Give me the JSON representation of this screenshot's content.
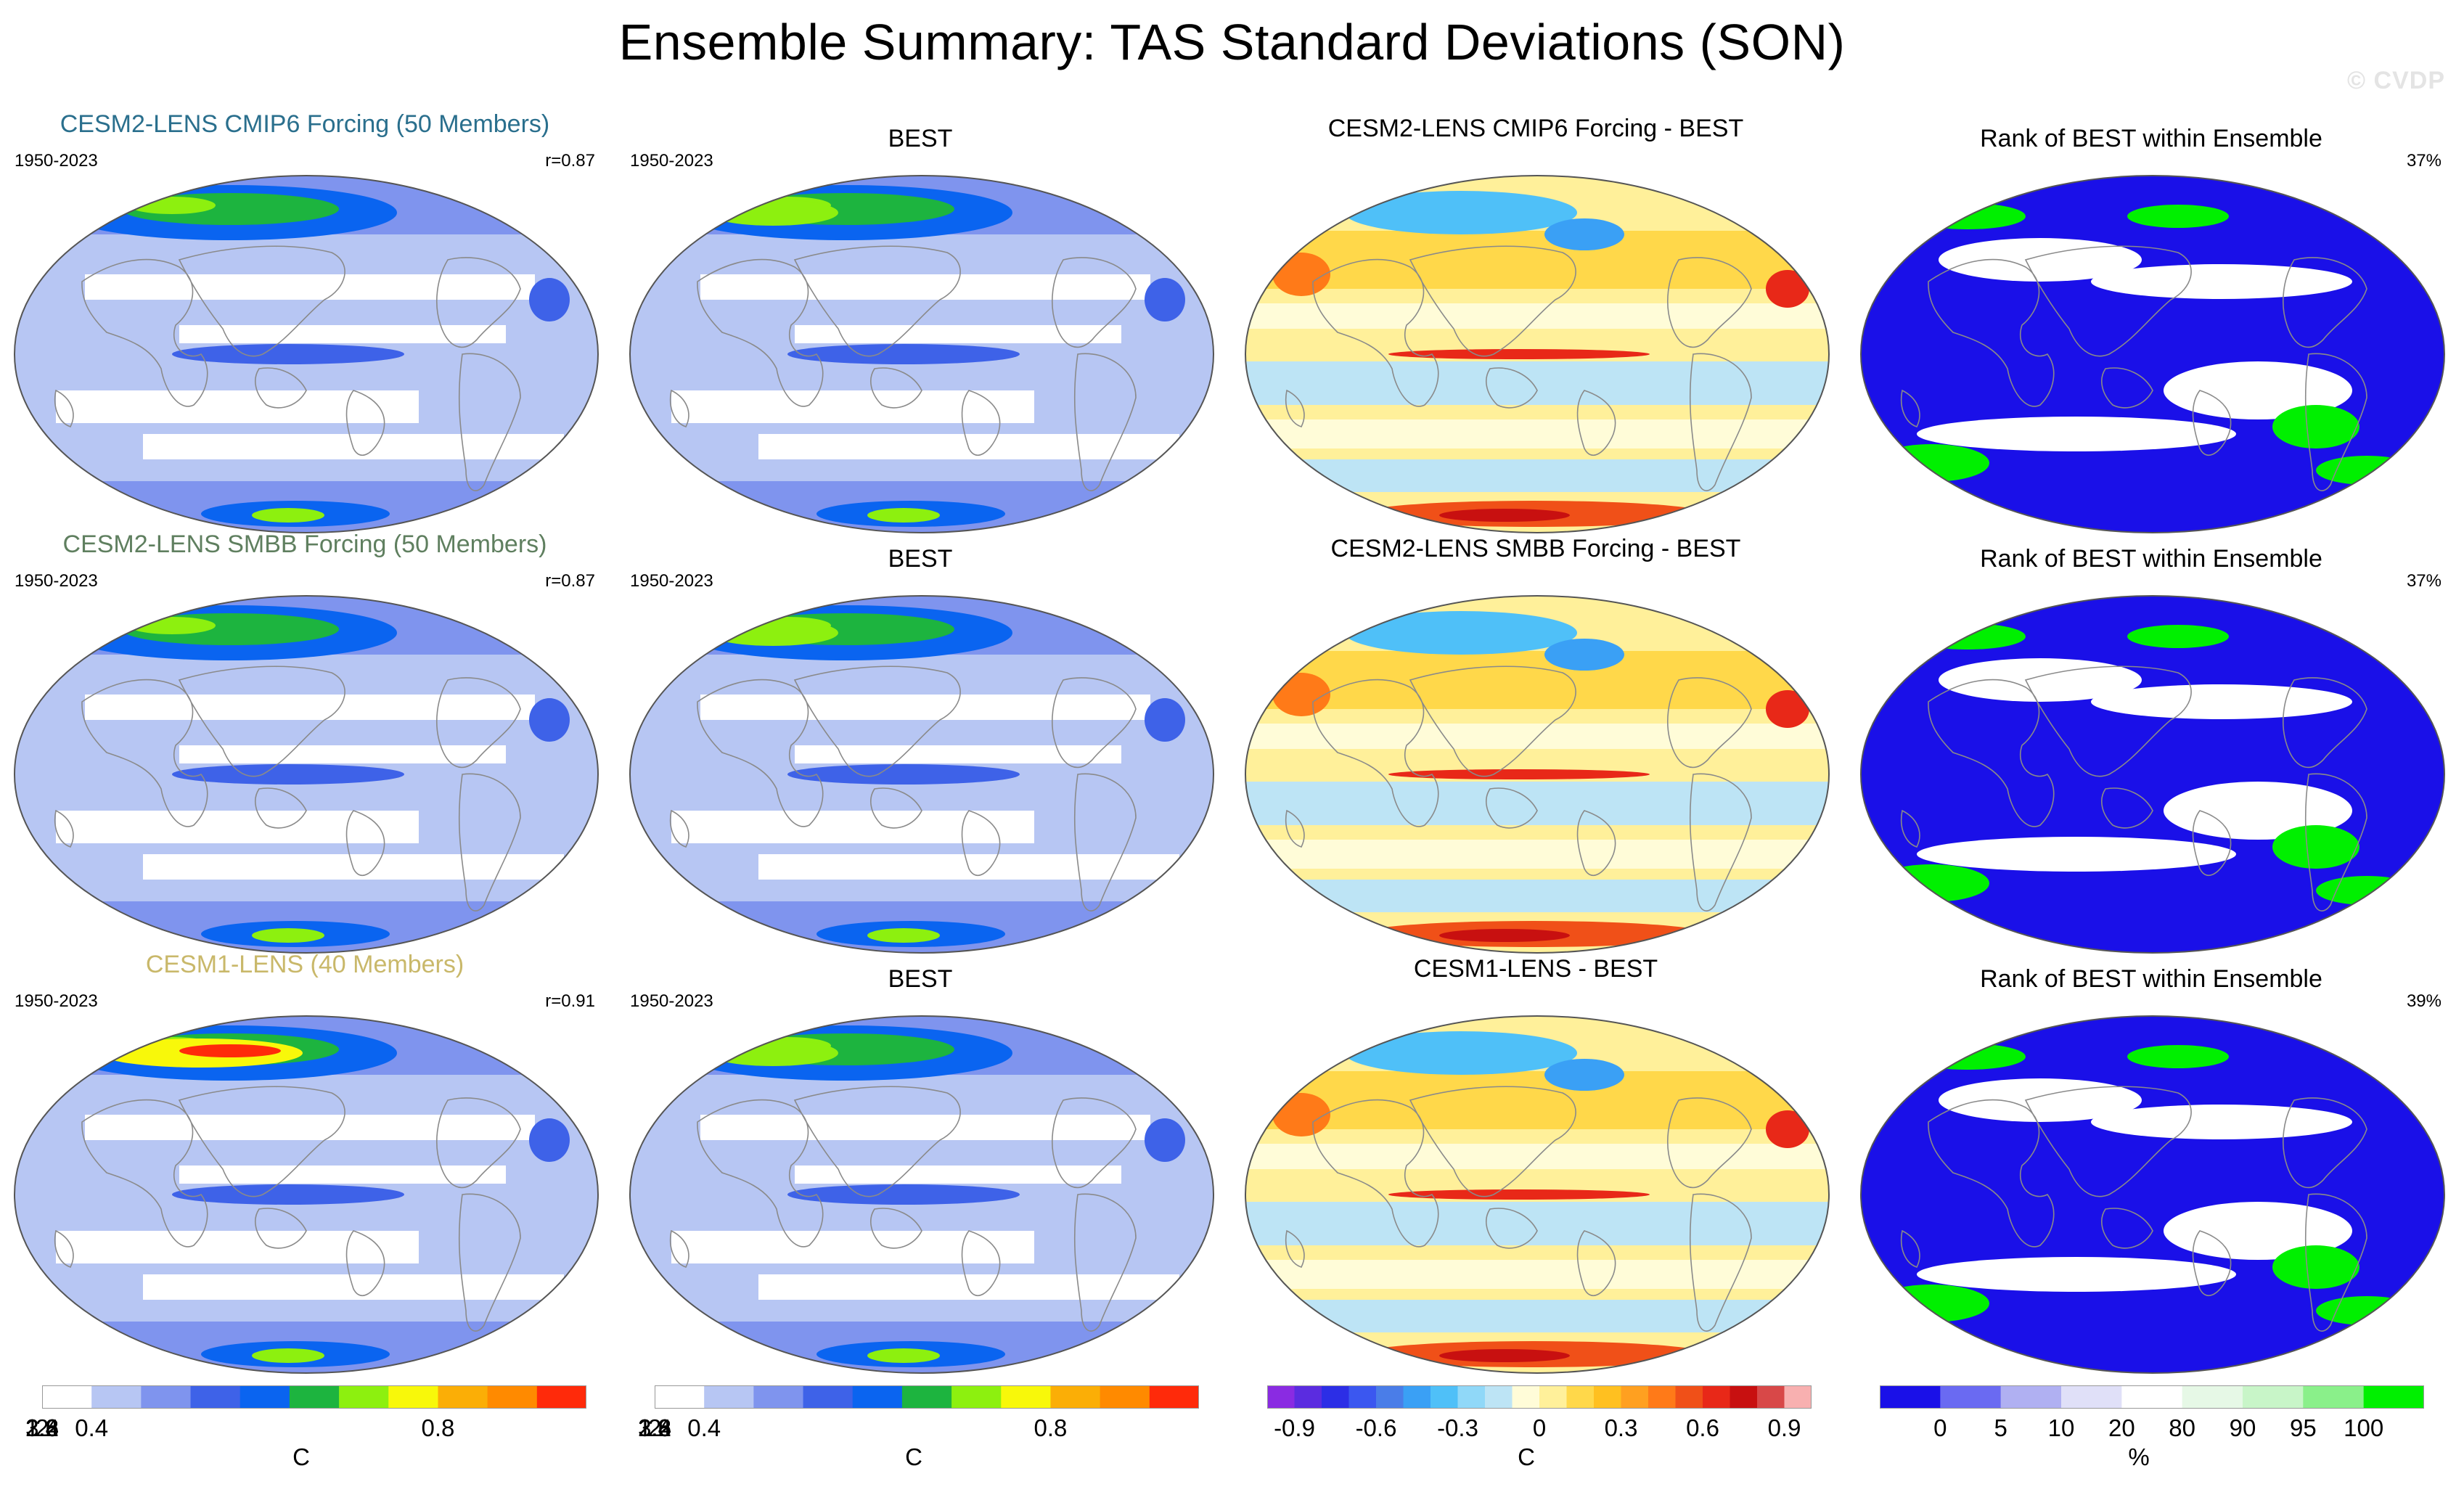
{
  "title": "Ensemble Summary: TAS Standard Deviations (SON)",
  "watermark": "© CVDP",
  "colors": {
    "title_cmip6": "#2a6f8d",
    "title_smbb": "#5f7f5f",
    "title_cesm1": "#c9b86a",
    "land_outline": "#8a8a8a"
  },
  "rows": [
    {
      "model": {
        "title": "CESM2-LENS CMIP6 Forcing (50 Members)",
        "period": "1950-2023",
        "corr": "r=0.87",
        "title_color": "#2a6f8d"
      },
      "obs": {
        "title": "BEST",
        "period": "1950-2023"
      },
      "diff": {
        "title": "CESM2-LENS CMIP6 Forcing - BEST"
      },
      "rank": {
        "title": "Rank of BEST within Ensemble",
        "pct": "37%"
      }
    },
    {
      "model": {
        "title": "CESM2-LENS SMBB Forcing (50 Members)",
        "period": "1950-2023",
        "corr": "r=0.87",
        "title_color": "#5f7f5f"
      },
      "obs": {
        "title": "BEST",
        "period": "1950-2023"
      },
      "diff": {
        "title": "CESM2-LENS SMBB Forcing - BEST"
      },
      "rank": {
        "title": "Rank of BEST within Ensemble",
        "pct": "37%"
      }
    },
    {
      "model": {
        "title": "CESM1-LENS (40 Members)",
        "period": "1950-2023",
        "corr": "r=0.91",
        "title_color": "#c9b86a"
      },
      "obs": {
        "title": "BEST",
        "period": "1950-2023"
      },
      "diff": {
        "title": "CESM1-LENS - BEST"
      },
      "rank": {
        "title": "Rank of BEST within Ensemble",
        "pct": "39%"
      }
    }
  ],
  "colorbars": [
    {
      "name": "std",
      "colors": [
        "#ffffff",
        "#b7c6f3",
        "#7f94ee",
        "#3e62e8",
        "#0a64f0",
        "#1db43f",
        "#8df00f",
        "#f8f80a",
        "#fbae06",
        "#ff8a00",
        "#ff2a0a"
      ],
      "labels": [
        "0.4",
        "0.8",
        "1.2",
        "1.6",
        "2",
        "2.4",
        "2.8",
        "3.2"
      ],
      "label_bounds": [
        1,
        8
      ],
      "unit": "C"
    },
    {
      "name": "std-obs",
      "colors": [
        "#ffffff",
        "#b7c6f3",
        "#7f94ee",
        "#3e62e8",
        "#0a64f0",
        "#1db43f",
        "#8df00f",
        "#f8f80a",
        "#fbae06",
        "#ff8a00",
        "#ff2a0a"
      ],
      "labels": [
        "0.4",
        "0.8",
        "1.2",
        "1.6",
        "2",
        "2.4",
        "2.8",
        "3.2"
      ],
      "label_bounds": [
        1,
        8
      ],
      "unit": "C"
    },
    {
      "name": "diff",
      "colors": [
        "#8a2be2",
        "#5b2ce0",
        "#2c2ee6",
        "#3b57f0",
        "#4a7de8",
        "#3aa0f5",
        "#4fc0f8",
        "#90d8f8",
        "#bde4f5",
        "#fffcd8",
        "#fff09a",
        "#ffd84a",
        "#ffc020",
        "#ffa020",
        "#ff7a18",
        "#f05018",
        "#e82818",
        "#c81010",
        "#d84848",
        "#f8b0b0"
      ],
      "labels": [
        "-0.9",
        "-0.6",
        "-0.3",
        "0",
        "0.3",
        "0.6",
        "0.9"
      ],
      "label_bounds": [
        1,
        4,
        7,
        10,
        13,
        16,
        19
      ],
      "unit": "C"
    },
    {
      "name": "rank",
      "colors": [
        "#1a10e8",
        "#6a6af2",
        "#b0b0f2",
        "#e0e0f8",
        "#ffffff",
        "#e6f8e6",
        "#c8f5c8",
        "#8af08a",
        "#00f000"
      ],
      "labels": [
        "0",
        "5",
        "10",
        "20",
        "80",
        "90",
        "95",
        "100"
      ],
      "label_bounds": [
        1,
        2,
        3,
        4,
        5,
        6,
        7,
        8
      ],
      "unit": "%"
    }
  ]
}
